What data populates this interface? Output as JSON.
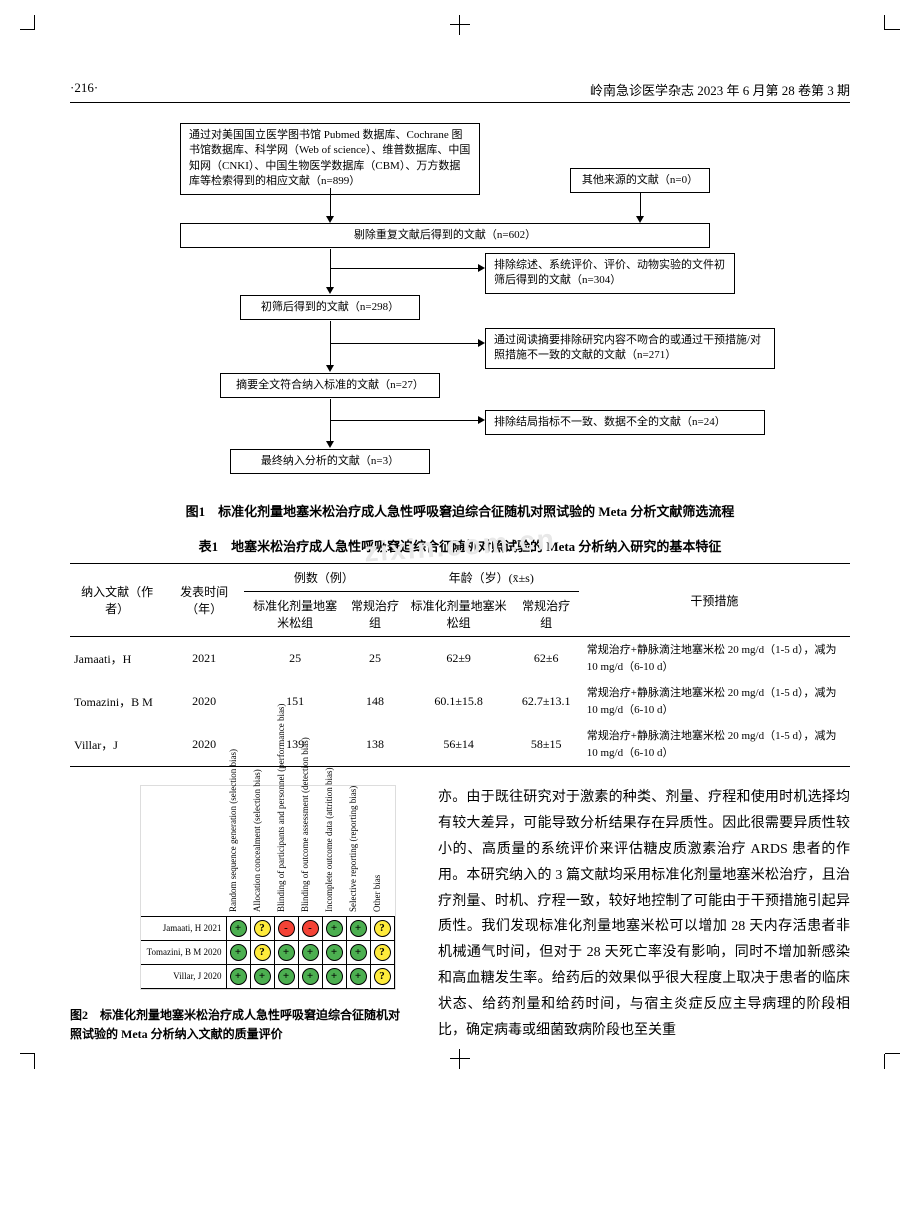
{
  "header": {
    "page_num": "·216·",
    "journal": "岭南急诊医学杂志 2023 年 6 月第 28 卷第 3 期"
  },
  "watermark": "zixin.com.cn",
  "flowchart": {
    "box1": "通过对美国国立医学图书馆 Pubmed 数据库、Cochrane 图书馆数据库、科学网（Web of science）、维普数据库、中国知网（CNKI）、中国生物医学数据库（CBM）、万方数据库等检索得到的相应文献（n=899）",
    "box2": "其他来源的文献（n=0）",
    "box3": "剔除重复文献后得到的文献（n=602）",
    "box4": "排除综述、系统评价、评价、动物实验的文件初筛后得到的文献（n=304）",
    "box5": "初筛后得到的文献（n=298）",
    "box6": "通过阅读摘要排除研究内容不吻合的或通过干预措施/对照措施不一致的文献的文献（n=271）",
    "box7": "摘要全文符合纳入标准的文献（n=27）",
    "box8": "排除结局指标不一致、数据不全的文献（n=24）",
    "box9": "最终纳入分析的文献（n=3）"
  },
  "fig1_caption": "图1　标准化剂量地塞米松治疗成人急性呼吸窘迫综合征随机对照试验的 Meta 分析文献筛选流程",
  "table1_caption": "表1　地塞米松治疗成人急性呼吸窘迫综合征随机对照试验的 Meta 分析纳入研究的基本特征",
  "table1": {
    "headers": {
      "col1": "纳入文献（作者）",
      "col2": "发表时间（年）",
      "col3_group": "例数（例）",
      "col3a": "标准化剂量地塞米松组",
      "col3b": "常规治疗组",
      "col4_group": "年龄（岁）(x̄±s)",
      "col4a": "标准化剂量地塞米松组",
      "col4b": "常规治疗组",
      "col5": "干预措施"
    },
    "rows": [
      {
        "author": "Jamaati，H",
        "year": "2021",
        "n1": "25",
        "n2": "25",
        "age1": "62±9",
        "age2": "62±6",
        "intv": "常规治疗+静脉滴注地塞米松 20 mg/d（1-5 d），减为 10 mg/d（6-10 d）"
      },
      {
        "author": "Tomazini，B M",
        "year": "2020",
        "n1": "151",
        "n2": "148",
        "age1": "60.1±15.8",
        "age2": "62.7±13.1",
        "intv": "常规治疗+静脉滴注地塞米松 20 mg/d（1-5 d），减为 10 mg/d（6-10 d）"
      },
      {
        "author": "Villar，J",
        "year": "2020",
        "n1": "139",
        "n2": "138",
        "age1": "56±14",
        "age2": "58±15",
        "intv": "常规治疗+静脉滴注地塞米松 20 mg/d（1-5 d），减为 10 mg/d（6-10 d）"
      }
    ]
  },
  "bias": {
    "domains": [
      "Random sequence generation (selection bias)",
      "Allocation concealment (selection bias)",
      "Blinding of participants and personnel (performance bias)",
      "Blinding of outcome assessment (detection bias)",
      "Incomplete outcome data (attrition bias)",
      "Selective reporting (reporting bias)",
      "Other bias"
    ],
    "studies": [
      {
        "name": "Jamaati, H 2021",
        "vals": [
          "+",
          "?",
          "-",
          "-",
          "+",
          "+",
          "?"
        ]
      },
      {
        "name": "Tomazini, B M 2020",
        "vals": [
          "+",
          "?",
          "+",
          "+",
          "+",
          "+",
          "?"
        ]
      },
      {
        "name": "Villar, J 2020",
        "vals": [
          "+",
          "+",
          "+",
          "+",
          "+",
          "+",
          "?"
        ]
      }
    ],
    "colors": {
      "+": "green",
      "?": "yellow",
      "-": "red"
    }
  },
  "fig2_caption": "图2　标准化剂量地塞米松治疗成人急性呼吸窘迫综合征随机对照试验的 Meta 分析纳入文献的质量评价",
  "body_paragraph": "亦。由于既往研究对于激素的种类、剂量、疗程和使用时机选择均有较大差异，可能导致分析结果存在异质性。因此很需要异质性较小的、高质量的系统评价来评估糖皮质激素治疗 ARDS 患者的作用。本研究纳入的 3 篇文献均采用标准化剂量地塞米松治疗，且治疗剂量、时机、疗程一致，较好地控制了可能由于干预措施引起异质性。我们发现标准化剂量地塞米松可以增加 28 天内存活患者非机械通气时间，但对于 28 天死亡率没有影响，同时不增加新感染和高血糖发生率。给药后的效果似乎很大程度上取决于患者的临床状态、给药剂量和给药时间，与宿主炎症反应主导病理的阶段相比，确定病毒或细菌致病阶段也至关重"
}
